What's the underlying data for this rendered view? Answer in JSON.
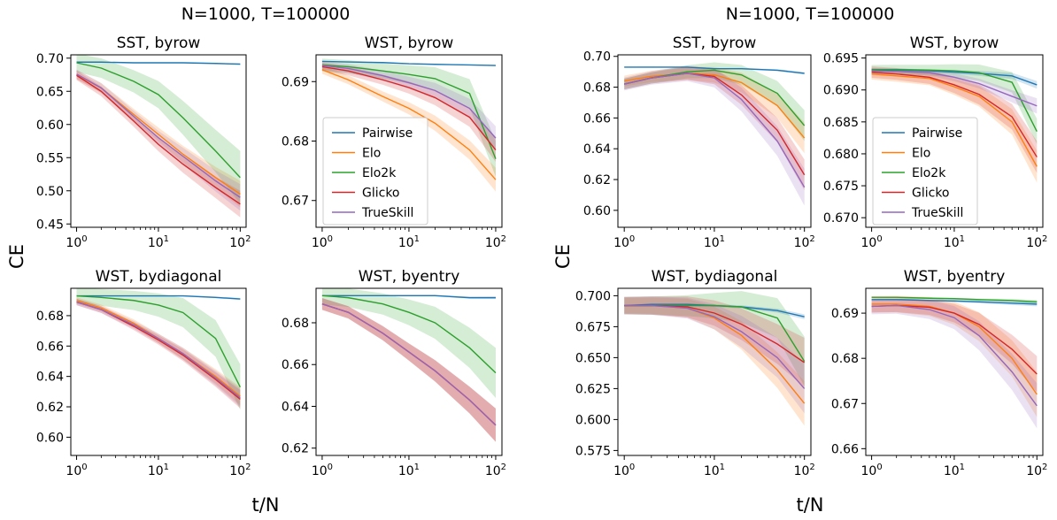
{
  "groups": [
    {
      "title": "N=1000, T=100000",
      "ylabel": "CE",
      "xlabel": "t/N"
    },
    {
      "title": "N=1000, T=100000",
      "ylabel": "CE",
      "xlabel": "t/N"
    }
  ],
  "legend": {
    "placement": "inside, upper panel of second column",
    "entries": [
      "Pairwise",
      "Elo",
      "Elo2k",
      "Glicko",
      "TrueSkill"
    ]
  },
  "colors": {
    "Pairwise": "#1f77b4",
    "Elo": "#ff7f0e",
    "Elo2k": "#2ca02c",
    "Glicko": "#d62728",
    "TrueSkill": "#9467bd"
  },
  "chart_data": [
    {
      "type": "line",
      "group": 0,
      "title": "SST, byrow",
      "xscale": "log",
      "xlim": [
        1,
        100
      ],
      "ylim": [
        0.445,
        0.705
      ],
      "yticks": [
        "0.45",
        "0.50",
        "0.55",
        "0.60",
        "0.65",
        "0.70"
      ],
      "x": [
        1,
        2,
        5,
        10,
        20,
        50,
        100
      ],
      "series": [
        {
          "name": "Pairwise",
          "values": [
            0.694,
            0.694,
            0.693,
            0.693,
            0.693,
            0.692,
            0.691
          ],
          "band": 0.001
        },
        {
          "name": "Elo",
          "values": [
            0.675,
            0.655,
            0.615,
            0.585,
            0.555,
            0.52,
            0.495
          ],
          "band": 0.02
        },
        {
          "name": "Elo2k",
          "values": [
            0.693,
            0.685,
            0.665,
            0.645,
            0.61,
            0.56,
            0.52
          ],
          "band": 0.04
        },
        {
          "name": "Glicko",
          "values": [
            0.674,
            0.65,
            0.605,
            0.57,
            0.54,
            0.505,
            0.48
          ],
          "band": 0.02
        },
        {
          "name": "TrueSkill",
          "values": [
            0.676,
            0.655,
            0.612,
            0.58,
            0.552,
            0.515,
            0.49
          ],
          "band": 0.02
        }
      ]
    },
    {
      "type": "line",
      "group": 0,
      "title": "WST, byrow",
      "xscale": "log",
      "xlim": [
        1,
        100
      ],
      "ylim": [
        0.6655,
        0.6945
      ],
      "yticks": [
        "0.67",
        "0.68",
        "0.69"
      ],
      "x": [
        1,
        2,
        5,
        10,
        20,
        50,
        100
      ],
      "series": [
        {
          "name": "Pairwise",
          "values": [
            0.6934,
            0.6933,
            0.6932,
            0.693,
            0.6929,
            0.6928,
            0.6927
          ],
          "band": 0.0001
        },
        {
          "name": "Elo",
          "values": [
            0.692,
            0.6903,
            0.6875,
            0.6855,
            0.683,
            0.6785,
            0.6735
          ],
          "band": 0.002
        },
        {
          "name": "Elo2k",
          "values": [
            0.6928,
            0.6925,
            0.6918,
            0.6912,
            0.6905,
            0.688,
            0.677
          ],
          "band": 0.003
        },
        {
          "name": "Glicko",
          "values": [
            0.6925,
            0.6918,
            0.6903,
            0.689,
            0.6873,
            0.684,
            0.6785
          ],
          "band": 0.002
        },
        {
          "name": "TrueSkill",
          "values": [
            0.6927,
            0.6922,
            0.691,
            0.6898,
            0.6885,
            0.6855,
            0.6805
          ],
          "band": 0.002
        }
      ]
    },
    {
      "type": "line",
      "group": 0,
      "title": "WST, bydiagonal",
      "xscale": "log",
      "xlim": [
        1,
        100
      ],
      "ylim": [
        0.588,
        0.698
      ],
      "yticks": [
        "0.60",
        "0.62",
        "0.64",
        "0.66",
        "0.68"
      ],
      "x": [
        1,
        2,
        5,
        10,
        20,
        50,
        100
      ],
      "series": [
        {
          "name": "Pairwise",
          "values": [
            0.693,
            0.693,
            0.693,
            0.693,
            0.693,
            0.692,
            0.691
          ],
          "band": 0.0007
        },
        {
          "name": "Elo",
          "values": [
            0.69,
            0.685,
            0.675,
            0.665,
            0.655,
            0.64,
            0.627
          ],
          "band": 0.006
        },
        {
          "name": "Elo2k",
          "values": [
            0.693,
            0.692,
            0.69,
            0.687,
            0.682,
            0.665,
            0.633
          ],
          "band": 0.015
        },
        {
          "name": "Glicko",
          "values": [
            0.689,
            0.684,
            0.673,
            0.664,
            0.654,
            0.638,
            0.625
          ],
          "band": 0.006
        },
        {
          "name": "TrueSkill",
          "values": [
            0.689,
            0.684,
            0.674,
            0.665,
            0.655,
            0.639,
            0.626
          ],
          "band": 0.006
        }
      ]
    },
    {
      "type": "line",
      "group": 0,
      "title": "WST, byentry",
      "xscale": "log",
      "xlim": [
        1,
        100
      ],
      "ylim": [
        0.6165,
        0.6965
      ],
      "yticks": [
        "0.62",
        "0.64",
        "0.66",
        "0.68"
      ],
      "x": [
        1,
        2,
        5,
        10,
        20,
        50,
        100
      ],
      "series": [
        {
          "name": "Pairwise",
          "values": [
            0.693,
            0.693,
            0.693,
            0.693,
            0.693,
            0.692,
            0.692
          ],
          "band": 0.0006
        },
        {
          "name": "Elo",
          "values": [
            0.689,
            0.685,
            0.675,
            0.666,
            0.657,
            0.643,
            0.631
          ],
          "band": 0.008
        },
        {
          "name": "Elo2k",
          "values": [
            0.693,
            0.692,
            0.689,
            0.685,
            0.68,
            0.668,
            0.656
          ],
          "band": 0.012
        },
        {
          "name": "Glicko",
          "values": [
            0.689,
            0.685,
            0.675,
            0.666,
            0.657,
            0.643,
            0.631
          ],
          "band": 0.008
        },
        {
          "name": "TrueSkill",
          "values": [
            0.689,
            0.685,
            0.675,
            0.666,
            0.657,
            0.643,
            0.631
          ],
          "band": 0.008
        }
      ]
    },
    {
      "type": "line",
      "group": 1,
      "title": "SST, byrow",
      "xscale": "log",
      "xlim": [
        1,
        100
      ],
      "ylim": [
        0.589,
        0.701
      ],
      "yticks": [
        "0.60",
        "0.62",
        "0.64",
        "0.66",
        "0.68",
        "0.70"
      ],
      "x": [
        1,
        2,
        5,
        10,
        20,
        50,
        100
      ],
      "series": [
        {
          "name": "Pairwise",
          "values": [
            0.693,
            0.693,
            0.693,
            0.692,
            0.692,
            0.691,
            0.689
          ],
          "band": 0.0008
        },
        {
          "name": "Elo",
          "values": [
            0.684,
            0.687,
            0.689,
            0.688,
            0.683,
            0.668,
            0.647
          ],
          "band": 0.01
        },
        {
          "name": "Elo2k",
          "values": [
            0.682,
            0.686,
            0.69,
            0.691,
            0.688,
            0.676,
            0.655
          ],
          "band": 0.01
        },
        {
          "name": "Glicko",
          "values": [
            0.682,
            0.686,
            0.689,
            0.687,
            0.675,
            0.652,
            0.623
          ],
          "band": 0.01
        },
        {
          "name": "TrueSkill",
          "values": [
            0.682,
            0.686,
            0.689,
            0.686,
            0.672,
            0.645,
            0.615
          ],
          "band": 0.012
        }
      ]
    },
    {
      "type": "line",
      "group": 1,
      "title": "WST, byrow",
      "xscale": "log",
      "xlim": [
        1,
        100
      ],
      "ylim": [
        0.6685,
        0.6955
      ],
      "yticks": [
        "0.670",
        "0.675",
        "0.680",
        "0.685",
        "0.690",
        "0.695"
      ],
      "x": [
        1,
        2,
        5,
        10,
        20,
        50,
        100
      ],
      "series": [
        {
          "name": "Pairwise",
          "values": [
            0.6931,
            0.6931,
            0.693,
            0.6928,
            0.6926,
            0.6922,
            0.6908
          ],
          "band": 0.0006
        },
        {
          "name": "Elo",
          "values": [
            0.6925,
            0.6922,
            0.6918,
            0.6905,
            0.689,
            0.685,
            0.678
          ],
          "band": 0.0025
        },
        {
          "name": "Elo2k",
          "values": [
            0.6932,
            0.6932,
            0.6931,
            0.693,
            0.6927,
            0.6912,
            0.6835
          ],
          "band": 0.002
        },
        {
          "name": "Glicko",
          "values": [
            0.6928,
            0.6925,
            0.692,
            0.6908,
            0.6893,
            0.6858,
            0.6795
          ],
          "band": 0.0025
        },
        {
          "name": "TrueSkill",
          "values": [
            0.693,
            0.6929,
            0.6927,
            0.692,
            0.691,
            0.689,
            0.6875
          ],
          "band": 0.0012
        }
      ]
    },
    {
      "type": "line",
      "group": 1,
      "title": "WST, bydiagonal",
      "xscale": "log",
      "xlim": [
        1,
        100
      ],
      "ylim": [
        0.571,
        0.706
      ],
      "yticks": [
        "0.575",
        "0.600",
        "0.625",
        "0.650",
        "0.675",
        "0.700"
      ],
      "x": [
        1,
        2,
        5,
        10,
        20,
        50,
        100
      ],
      "series": [
        {
          "name": "Pairwise",
          "values": [
            0.692,
            0.693,
            0.693,
            0.692,
            0.691,
            0.688,
            0.683
          ],
          "band": 0.002
        },
        {
          "name": "Elo",
          "values": [
            0.692,
            0.692,
            0.69,
            0.682,
            0.668,
            0.64,
            0.613
          ],
          "band": 0.018
        },
        {
          "name": "Elo2k",
          "values": [
            0.692,
            0.692,
            0.692,
            0.692,
            0.691,
            0.682,
            0.647
          ],
          "band": 0.02
        },
        {
          "name": "Glicko",
          "values": [
            0.692,
            0.692,
            0.691,
            0.686,
            0.677,
            0.661,
            0.646
          ],
          "band": 0.02
        },
        {
          "name": "TrueSkill",
          "values": [
            0.692,
            0.692,
            0.69,
            0.683,
            0.671,
            0.65,
            0.625
          ],
          "band": 0.02
        }
      ]
    },
    {
      "type": "line",
      "group": 1,
      "title": "WST, byentry",
      "xscale": "log",
      "xlim": [
        1,
        100
      ],
      "ylim": [
        0.6585,
        0.6955
      ],
      "yticks": [
        "0.66",
        "0.67",
        "0.68",
        "0.69"
      ],
      "x": [
        1,
        2,
        5,
        10,
        20,
        50,
        100
      ],
      "series": [
        {
          "name": "Pairwise",
          "values": [
            0.693,
            0.693,
            0.6928,
            0.6927,
            0.6925,
            0.6922,
            0.692
          ],
          "band": 0.0005
        },
        {
          "name": "Elo",
          "values": [
            0.692,
            0.692,
            0.6915,
            0.69,
            0.687,
            0.68,
            0.672
          ],
          "band": 0.005
        },
        {
          "name": "Elo2k",
          "values": [
            0.6935,
            0.6935,
            0.6933,
            0.6932,
            0.693,
            0.6928,
            0.6925
          ],
          "band": 0.0004
        },
        {
          "name": "Glicko",
          "values": [
            0.6915,
            0.6917,
            0.6913,
            0.69,
            0.6875,
            0.682,
            0.6765
          ],
          "band": 0.004
        },
        {
          "name": "TrueSkill",
          "values": [
            0.6915,
            0.6917,
            0.6908,
            0.689,
            0.685,
            0.677,
            0.6695
          ],
          "band": 0.005
        }
      ]
    }
  ]
}
